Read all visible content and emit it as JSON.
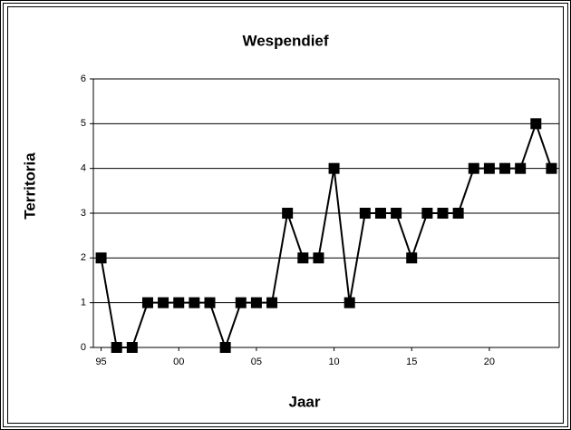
{
  "chart_data": {
    "type": "line",
    "title": "Wespendief",
    "x_label": "Jaar",
    "y_label": "Territoria",
    "categories": [
      "95",
      null,
      null,
      null,
      null,
      "00",
      null,
      null,
      null,
      null,
      "05",
      null,
      null,
      null,
      null,
      "10",
      null,
      null,
      null,
      null,
      "15",
      null,
      null,
      null,
      null,
      "20",
      null,
      null,
      null,
      null
    ],
    "values": [
      2,
      0,
      0,
      1,
      1,
      1,
      1,
      1,
      0,
      1,
      1,
      1,
      3,
      2,
      2,
      4,
      1,
      3,
      3,
      3,
      2,
      3,
      3,
      3,
      4,
      4,
      4,
      4,
      5,
      4
    ],
    "color": "#000000",
    "ylim": [
      0,
      6
    ],
    "yticks": [
      0,
      1,
      2,
      3,
      4,
      5,
      6
    ],
    "grid": true
  }
}
